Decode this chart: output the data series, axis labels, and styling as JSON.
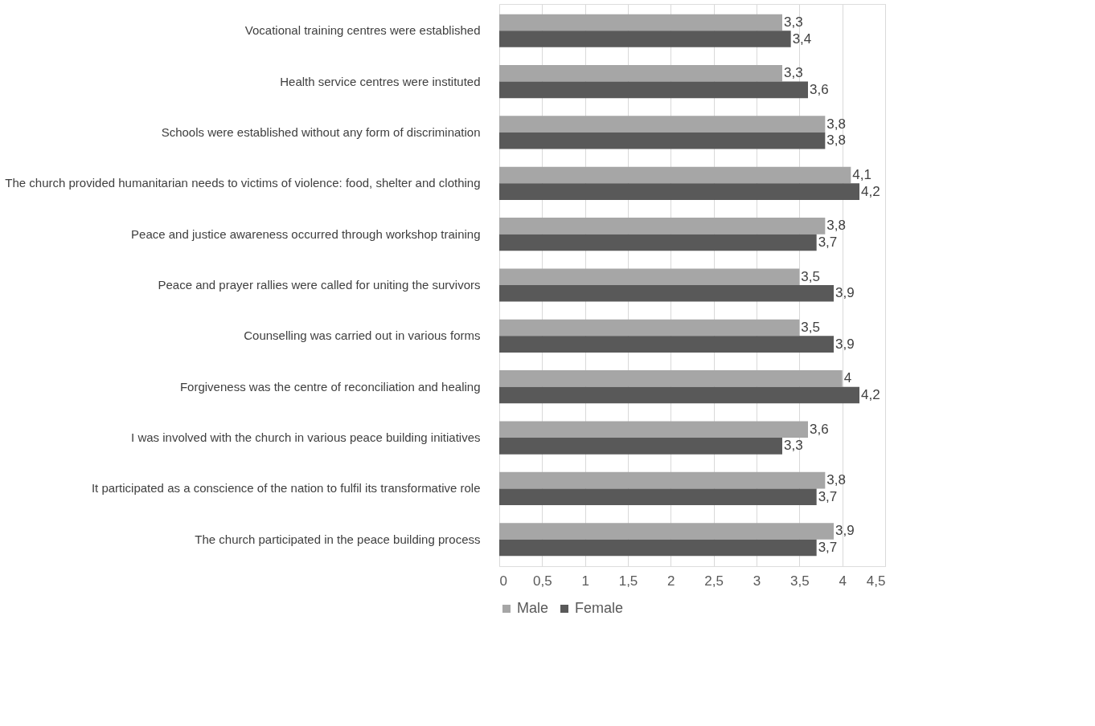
{
  "chart_data": {
    "type": "bar",
    "orientation": "horizontal",
    "categories": [
      "Vocational training centres were established",
      "Health service centres were instituted",
      "Schools were established without any form of discrimination",
      "The church provided humanitarian needs to victims of violence: food, shelter and clothing",
      "Peace and justice awareness occurred through workshop training",
      "Peace and prayer rallies were called for uniting the survivors",
      "Counselling was carried out in various forms",
      "Forgiveness was the centre of reconciliation and healing",
      "I was involved with the church in various peace building initiatives",
      "It participated  as a conscience of the nation to fulfil its transformative role",
      "The church participated in the peace building process"
    ],
    "series": [
      {
        "name": "Male",
        "color": "#a6a6a6",
        "values": [
          3.3,
          3.3,
          3.8,
          4.1,
          3.8,
          3.5,
          3.5,
          4,
          3.6,
          3.8,
          3.9
        ],
        "value_labels": [
          "3,3",
          "3,3",
          "3,8",
          "4,1",
          "3,8",
          "3,5",
          "3,5",
          "4",
          "3,6",
          "3,8",
          "3,9"
        ]
      },
      {
        "name": "Female",
        "color": "#595959",
        "values": [
          3.4,
          3.6,
          3.8,
          4.2,
          3.7,
          3.9,
          3.9,
          4.2,
          3.3,
          3.7,
          3.7
        ],
        "value_labels": [
          "3,4",
          "3,6",
          "3,8",
          "4,2",
          "3,7",
          "3,9",
          "3,9",
          "4,2",
          "3,3",
          "3,7",
          "3,7"
        ]
      }
    ],
    "xlim": [
      0,
      4.5
    ],
    "xticks": [
      0,
      {
        "value": 0.5,
        "label": "0,5"
      },
      1,
      {
        "value": 1.5,
        "label": "1,5"
      },
      2,
      {
        "value": 2.5,
        "label": "2,5"
      },
      3,
      {
        "value": 3.5,
        "label": "3,5"
      },
      4,
      {
        "value": 4.5,
        "label": "4,5"
      }
    ],
    "grid": "x",
    "legend": "bottom"
  }
}
